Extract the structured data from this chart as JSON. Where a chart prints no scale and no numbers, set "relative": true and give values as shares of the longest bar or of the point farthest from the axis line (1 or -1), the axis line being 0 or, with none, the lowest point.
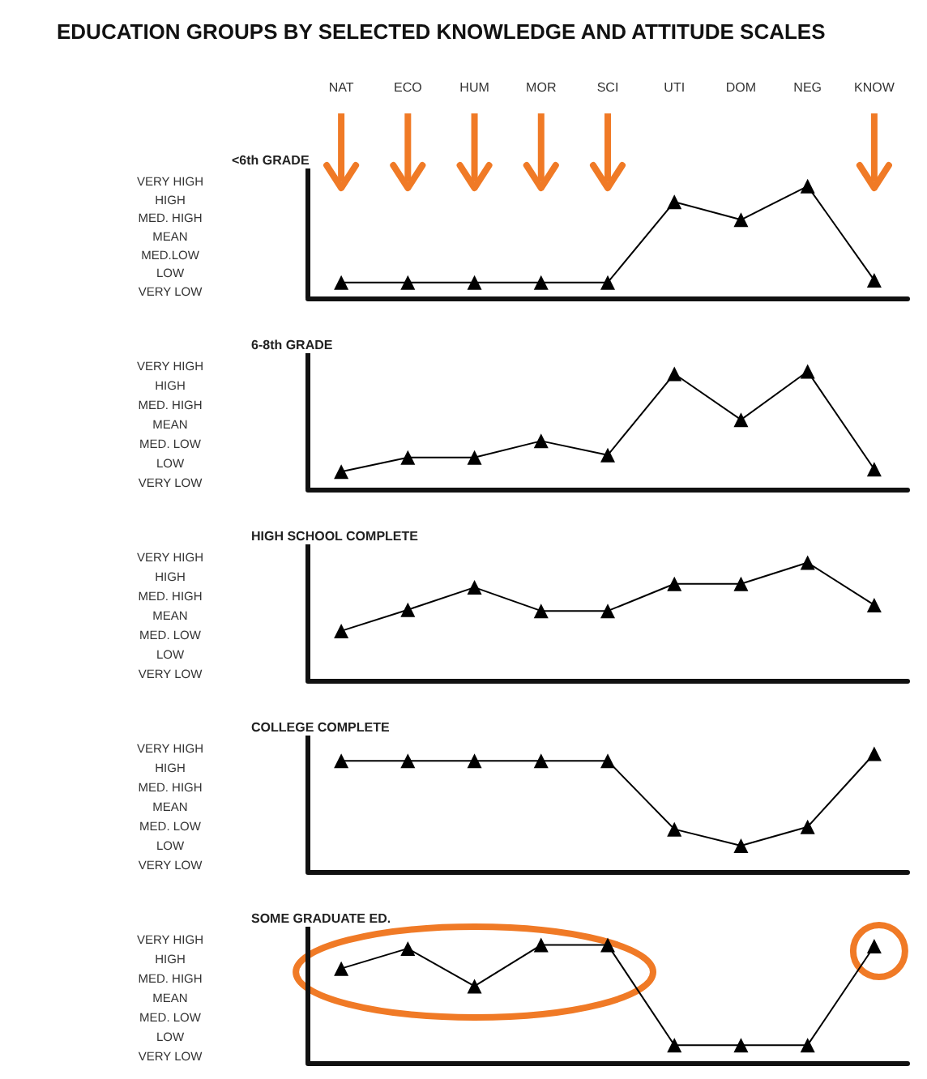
{
  "chart_data": [
    {
      "type": "line",
      "title": "EDUCATION GROUPS BY SELECTED KNOWLEDGE AND ATTITUDE SCALES",
      "subtitle": "<6th GRADE",
      "categories": [
        "NAT",
        "ECO",
        "HUM",
        "MOR",
        "SCI",
        "UTI",
        "DOM",
        "NEG",
        "KNOW"
      ],
      "values": [
        0.14,
        0.14,
        0.14,
        0.14,
        0.14,
        0.86,
        0.7,
        1,
        0.16
      ],
      "relative": true,
      "color": "#000000",
      "marker": "triangle",
      "tick_labels": "x",
      "annotations": [
        "VERY HIGH",
        "HIGH",
        "MED. HIGH",
        "MEAN",
        "MED.LOW",
        "LOW",
        "VERY LOW"
      ]
    },
    {
      "type": "line",
      "title": "6-8th GRADE",
      "categories": [
        null,
        null,
        null,
        null,
        null,
        null,
        null,
        null,
        null
      ],
      "values": [
        0.15,
        0.27,
        0.27,
        0.41,
        0.29,
        0.98,
        0.59,
        1,
        0.17
      ],
      "relative": true,
      "color": "#000000",
      "marker": "triangle",
      "tick_labels": false,
      "annotations": [
        "VERY HIGH",
        "HIGH",
        "MED. HIGH",
        "MEAN",
        "MED. LOW",
        "LOW",
        "VERY LOW"
      ]
    },
    {
      "type": "line",
      "title": "HIGH SCHOOL COMPLETE",
      "categories": [
        null,
        null,
        null,
        null,
        null,
        null,
        null,
        null,
        null
      ],
      "values": [
        0.42,
        0.6,
        0.79,
        0.59,
        0.59,
        0.82,
        0.82,
        1,
        0.64
      ],
      "relative": true,
      "color": "#000000",
      "marker": "triangle",
      "tick_labels": false,
      "annotations": [
        "VERY HIGH",
        "HIGH",
        "MED. HIGH",
        "MEAN",
        "MED. LOW",
        "LOW",
        "VERY LOW"
      ]
    },
    {
      "type": "line",
      "title": "COLLEGE COMPLETE",
      "categories": [
        null,
        null,
        null,
        null,
        null,
        null,
        null,
        null,
        null
      ],
      "values": [
        0.94,
        0.94,
        0.94,
        0.94,
        0.94,
        0.36,
        0.22,
        0.38,
        1
      ],
      "relative": true,
      "color": "#000000",
      "marker": "triangle",
      "tick_labels": false,
      "annotations": [
        "VERY HIGH",
        "HIGH",
        "MED. HIGH",
        "MEAN",
        "MED. LOW",
        "LOW",
        "VERY LOW"
      ]
    },
    {
      "type": "line",
      "title": "SOME GRADUATE ED.",
      "categories": [
        null,
        null,
        null,
        null,
        null,
        null,
        null,
        null,
        null
      ],
      "values": [
        0.8,
        0.97,
        0.65,
        1,
        1,
        0.15,
        0.15,
        0.15,
        0.99
      ],
      "relative": true,
      "color": "#000000",
      "marker": "triangle",
      "tick_labels": false,
      "annotations": [
        "VERY HIGH",
        "HIGH",
        "MED. HIGH",
        "MEAN",
        "MED. LOW",
        "LOW",
        "VERY LOW"
      ]
    }
  ]
}
